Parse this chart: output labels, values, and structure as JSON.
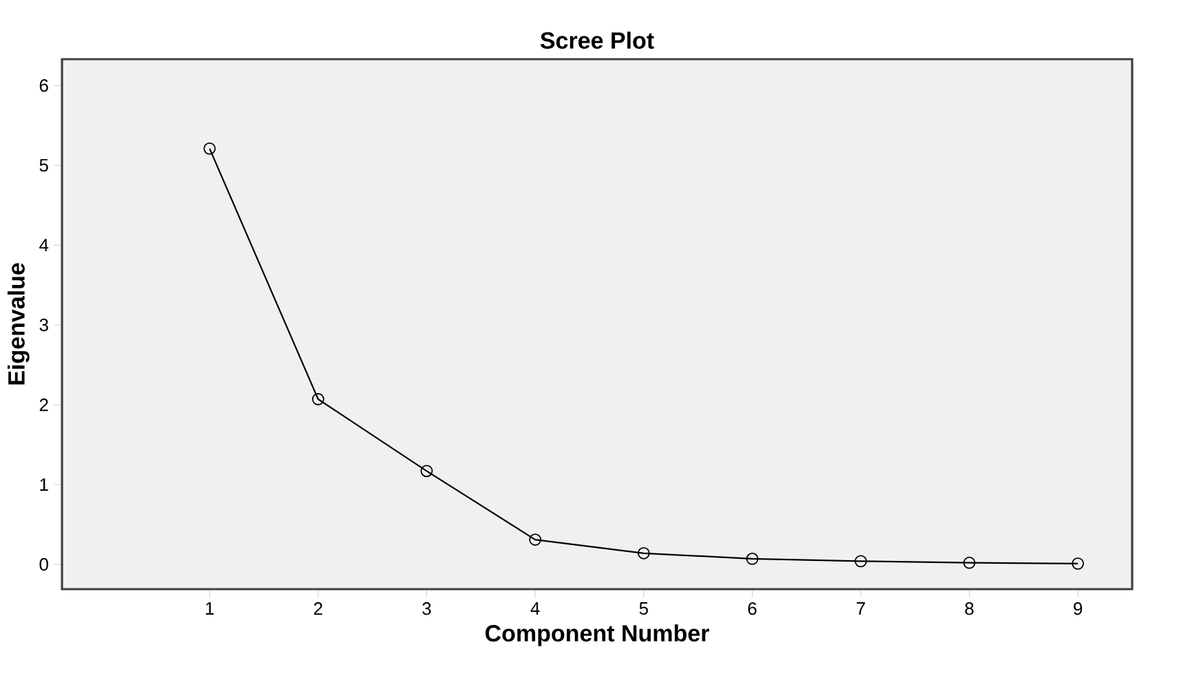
{
  "chart_data": {
    "type": "line",
    "title": "Scree Plot",
    "xlabel": "Component Number",
    "ylabel": "Eigenvalue",
    "x": [
      1,
      2,
      3,
      4,
      5,
      6,
      7,
      8,
      9
    ],
    "series": [
      {
        "color": "#000000",
        "values": [
          5.21,
          2.07,
          1.17,
          0.31,
          0.14,
          0.07,
          0.04,
          0.02,
          0.01
        ]
      }
    ],
    "xlim": [
      -0.36,
      9.5
    ],
    "ylim": [
      -0.31,
      6.33
    ],
    "xticks": [
      1,
      2,
      3,
      4,
      5,
      6,
      7,
      8,
      9
    ],
    "yticks": [
      0,
      1,
      2,
      3,
      4,
      5,
      6
    ],
    "marker": "circle",
    "line_style": "solid",
    "grid": false
  }
}
